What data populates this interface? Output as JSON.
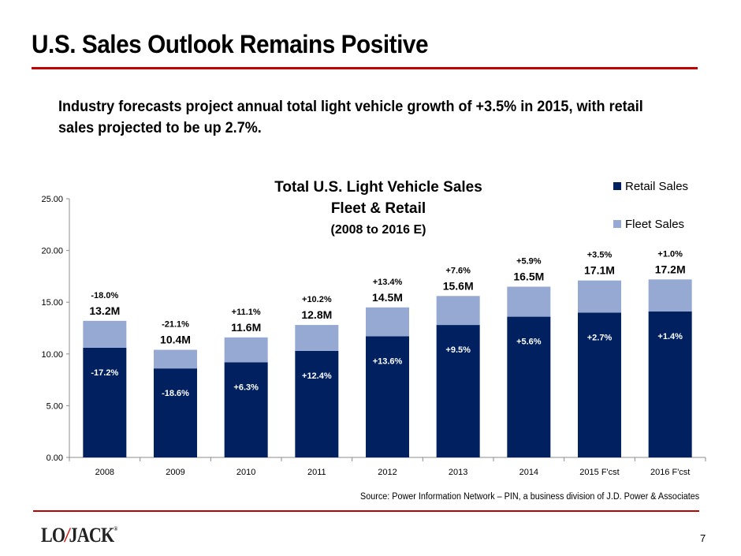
{
  "slide": {
    "title": "U.S. Sales Outlook Remains Positive",
    "subtitle": "Industry forecasts project annual total light vehicle growth of +3.5% in 2015, with retail sales projected to be up 2.7%.",
    "source": "Source: Power Information Network – PIN, a business division of J.D. Power & Associates",
    "page_number": "7",
    "logo": {
      "left": "LO",
      "bolt": "/",
      "right": "JACK",
      "mark": "®"
    },
    "accent_color": "#c00000"
  },
  "chart_data": {
    "type": "bar",
    "stacked": true,
    "title": "Total U.S. Light Vehicle Sales",
    "title_line2": "Fleet & Retail",
    "subtitle": "(2008 to 2016 E)",
    "xlabel": "",
    "ylabel": "",
    "ylim": [
      0,
      25
    ],
    "yticks": [
      "0.00",
      "5.00",
      "10.00",
      "15.00",
      "20.00",
      "25.00"
    ],
    "grid": false,
    "legend_position": "top-right",
    "categories": [
      "2008",
      "2009",
      "2010",
      "2011",
      "2012",
      "2013",
      "2014",
      "2015 F'cst",
      "2016 F'cst"
    ],
    "series": [
      {
        "name": "Retail Sales",
        "color": "#002060",
        "values": [
          10.6,
          8.6,
          9.2,
          10.3,
          11.7,
          12.8,
          13.6,
          14.0,
          14.1
        ]
      },
      {
        "name": "Fleet Sales",
        "color": "#95a9d3",
        "values": [
          2.6,
          1.8,
          2.4,
          2.5,
          2.8,
          2.8,
          2.9,
          3.1,
          3.1
        ]
      }
    ],
    "total_labels": [
      "13.2M",
      "10.4M",
      "11.6M",
      "12.8M",
      "14.5M",
      "15.6M",
      "16.5M",
      "17.1M",
      "17.2M"
    ],
    "total_growth_labels": [
      "-18.0%",
      "-21.1%",
      "+11.1%",
      "+10.2%",
      "+13.4%",
      "+7.6%",
      "+5.9%",
      "+3.5%",
      "+1.0%"
    ],
    "retail_growth_labels": [
      "-17.2%",
      "-18.6%",
      "+6.3%",
      "+12.4%",
      "+13.6%",
      "+9.5%",
      "+5.6%",
      "+2.7%",
      "+1.4%"
    ]
  }
}
